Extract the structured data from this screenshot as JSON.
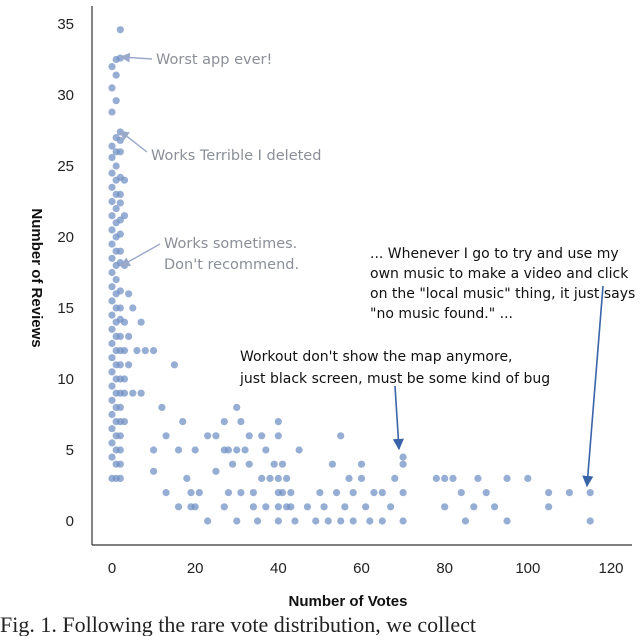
{
  "chart_data": {
    "type": "scatter",
    "xlabel": "Number of Votes",
    "ylabel": "Number of Reviews",
    "xlim": [
      -5,
      125
    ],
    "ylim": [
      -2,
      36
    ],
    "x_ticks": [
      0,
      20,
      40,
      60,
      80,
      100,
      120
    ],
    "y_ticks": [
      0,
      5,
      10,
      15,
      20,
      25,
      30,
      35
    ],
    "grid": false,
    "legend": "none",
    "point_color": "#6f8fc4",
    "annotation_grey_color": "#8a8f98",
    "annotation_blue_color": "#3a64a8",
    "points": [
      [
        2,
        34.6
      ],
      [
        1,
        32.5
      ],
      [
        2,
        32.6
      ],
      [
        0,
        32
      ],
      [
        1,
        31.4
      ],
      [
        0,
        30.5
      ],
      [
        1,
        29.6
      ],
      [
        0,
        28.8
      ],
      [
        2,
        27.4
      ],
      [
        1,
        27
      ],
      [
        2,
        26.8
      ],
      [
        0,
        26.4
      ],
      [
        1,
        26
      ],
      [
        2,
        26
      ],
      [
        0,
        25.6
      ],
      [
        1,
        25
      ],
      [
        0,
        24.5
      ],
      [
        2,
        24.2
      ],
      [
        1,
        24
      ],
      [
        0,
        23.5
      ],
      [
        1,
        23
      ],
      [
        2,
        23
      ],
      [
        3,
        24
      ],
      [
        0,
        22.5
      ],
      [
        1,
        22
      ],
      [
        2,
        22.4
      ],
      [
        0,
        21.5
      ],
      [
        1,
        21
      ],
      [
        2,
        21.2
      ],
      [
        3,
        21.5
      ],
      [
        0,
        20.5
      ],
      [
        1,
        20
      ],
      [
        2,
        20.2
      ],
      [
        0,
        19.5
      ],
      [
        1,
        19
      ],
      [
        2,
        19
      ],
      [
        0,
        18.5
      ],
      [
        1,
        18
      ],
      [
        2,
        18.2
      ],
      [
        0,
        17.5
      ],
      [
        1,
        17
      ],
      [
        3,
        18
      ],
      [
        0,
        16.5
      ],
      [
        1,
        16
      ],
      [
        2,
        16.2
      ],
      [
        0,
        15.5
      ],
      [
        1,
        15
      ],
      [
        2,
        15
      ],
      [
        0,
        14.5
      ],
      [
        1,
        14
      ],
      [
        2,
        14.2
      ],
      [
        0,
        13.5
      ],
      [
        1,
        13
      ],
      [
        2,
        13
      ],
      [
        0,
        12.5
      ],
      [
        1,
        12
      ],
      [
        2,
        12
      ],
      [
        0,
        11.5
      ],
      [
        1,
        11
      ],
      [
        2,
        11
      ],
      [
        0,
        10.5
      ],
      [
        1,
        10
      ],
      [
        2,
        10
      ],
      [
        0,
        9.5
      ],
      [
        1,
        9
      ],
      [
        2,
        9
      ],
      [
        0,
        8.5
      ],
      [
        1,
        8
      ],
      [
        2,
        8
      ],
      [
        0,
        7.5
      ],
      [
        1,
        7
      ],
      [
        2,
        7
      ],
      [
        0,
        6.5
      ],
      [
        1,
        6
      ],
      [
        2,
        6
      ],
      [
        0,
        5.5
      ],
      [
        1,
        5
      ],
      [
        2,
        5
      ],
      [
        0,
        4.5
      ],
      [
        1,
        4
      ],
      [
        2,
        4
      ],
      [
        0,
        3
      ],
      [
        1,
        3
      ],
      [
        2,
        3
      ],
      [
        3,
        14
      ],
      [
        3,
        12
      ],
      [
        3,
        10
      ],
      [
        3,
        9
      ],
      [
        3,
        7
      ],
      [
        4,
        16
      ],
      [
        4,
        13
      ],
      [
        4,
        11
      ],
      [
        5,
        15
      ],
      [
        5,
        9
      ],
      [
        6,
        12
      ],
      [
        7,
        14
      ],
      [
        7,
        9
      ],
      [
        8,
        12
      ],
      [
        10,
        12
      ],
      [
        10,
        5
      ],
      [
        10,
        3.5
      ],
      [
        12,
        8
      ],
      [
        13,
        6
      ],
      [
        13,
        2
      ],
      [
        15,
        11
      ],
      [
        16,
        5
      ],
      [
        16,
        1
      ],
      [
        17,
        7
      ],
      [
        18,
        3
      ],
      [
        19,
        2
      ],
      [
        19,
        1
      ],
      [
        20,
        1
      ],
      [
        20,
        5
      ],
      [
        21,
        2
      ],
      [
        23,
        6
      ],
      [
        23,
        0
      ],
      [
        25,
        6
      ],
      [
        25,
        3.5
      ],
      [
        27,
        7
      ],
      [
        27,
        5
      ],
      [
        27,
        1
      ],
      [
        28,
        2
      ],
      [
        28,
        5
      ],
      [
        29,
        4
      ],
      [
        30,
        8
      ],
      [
        30,
        5
      ],
      [
        30,
        0
      ],
      [
        31,
        2
      ],
      [
        31,
        7
      ],
      [
        32,
        5
      ],
      [
        33,
        6
      ],
      [
        33,
        4
      ],
      [
        34,
        2
      ],
      [
        34,
        1
      ],
      [
        35,
        0
      ],
      [
        36,
        6
      ],
      [
        36,
        3
      ],
      [
        37,
        5
      ],
      [
        37,
        1
      ],
      [
        38,
        3
      ],
      [
        39,
        4
      ],
      [
        40,
        7
      ],
      [
        40,
        6
      ],
      [
        40,
        3
      ],
      [
        40,
        2
      ],
      [
        40,
        1
      ],
      [
        40,
        0
      ],
      [
        41,
        4
      ],
      [
        41,
        2
      ],
      [
        42,
        3
      ],
      [
        42,
        1
      ],
      [
        43,
        2
      ],
      [
        43,
        1
      ],
      [
        44,
        0
      ],
      [
        45,
        5
      ],
      [
        47,
        1
      ],
      [
        49,
        0
      ],
      [
        50,
        2
      ],
      [
        51,
        1
      ],
      [
        52,
        0
      ],
      [
        53,
        4
      ],
      [
        54,
        2
      ],
      [
        55,
        6
      ],
      [
        55,
        0
      ],
      [
        56,
        1
      ],
      [
        57,
        3
      ],
      [
        58,
        2
      ],
      [
        58,
        0
      ],
      [
        60,
        4
      ],
      [
        60,
        3
      ],
      [
        61,
        1
      ],
      [
        62,
        0
      ],
      [
        63,
        2
      ],
      [
        65,
        2
      ],
      [
        65,
        0
      ],
      [
        67,
        1
      ],
      [
        68,
        3
      ],
      [
        70,
        4.5
      ],
      [
        70,
        4
      ],
      [
        70,
        2
      ],
      [
        70,
        0
      ],
      [
        78,
        3
      ],
      [
        80,
        3
      ],
      [
        80,
        1
      ],
      [
        82,
        3
      ],
      [
        84,
        2
      ],
      [
        85,
        0
      ],
      [
        87,
        1
      ],
      [
        88,
        3
      ],
      [
        90,
        2
      ],
      [
        92,
        1
      ],
      [
        95,
        3
      ],
      [
        95,
        0
      ],
      [
        100,
        3
      ],
      [
        105,
        2
      ],
      [
        105,
        1
      ],
      [
        110,
        2
      ],
      [
        115,
        2
      ],
      [
        115,
        0
      ]
    ],
    "annotations": [
      {
        "text": "Worst app ever!",
        "style": "grey",
        "target": [
          2,
          32.6
        ]
      },
      {
        "text": "Works Terrible I deleted",
        "style": "grey",
        "target": [
          2,
          27.4
        ]
      },
      {
        "lines": [
          "Works sometimes.",
          "Don't recommend."
        ],
        "style": "grey",
        "target": [
          2,
          20.6
        ]
      },
      {
        "lines": [
          "... Whenever I go to try and use my",
          "own music to make a video and click",
          "on the \"local music\" thing, it just says",
          "\"no music found.\" ..."
        ],
        "style": "black",
        "target": [
          115,
          2.4
        ]
      },
      {
        "lines": [
          "Workout don't show the map anymore,",
          "just black screen, must be some kind of bug"
        ],
        "style": "black",
        "target": [
          70,
          4.9
        ]
      }
    ]
  },
  "caption": "Fig. 1.  Following the rare vote distribution, we collect"
}
